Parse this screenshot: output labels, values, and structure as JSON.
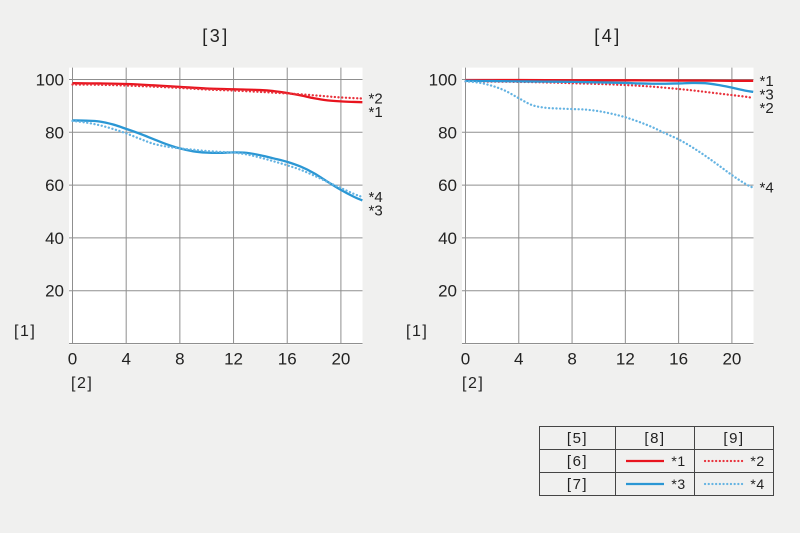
{
  "page": {
    "background": "#f0f0ef",
    "plot_background": "#ffffff",
    "grid_color": "#8f8f8f",
    "text_color": "#222222"
  },
  "chart_data": [
    {
      "type": "line",
      "title": "[3]",
      "ylabel": "[1]",
      "xlabel": "[2]",
      "x_ticks": [
        0,
        4,
        8,
        12,
        16,
        20
      ],
      "y_ticks": [
        20,
        40,
        60,
        80,
        100
      ],
      "xlim": [
        0,
        21.6
      ],
      "ylim": [
        0,
        104.5
      ],
      "grid": true,
      "legend_position": "none",
      "series": [
        {
          "name": "*1",
          "style": "solid",
          "color": "#e8141e",
          "points": [
            [
              0,
              98.6
            ],
            [
              2,
              98.5
            ],
            [
              4,
              98.3
            ],
            [
              6,
              97.8
            ],
            [
              8,
              97.2
            ],
            [
              10,
              96.6
            ],
            [
              12,
              96.3
            ],
            [
              14,
              96.0
            ],
            [
              15,
              95.6
            ],
            [
              16,
              94.9
            ],
            [
              17,
              94.0
            ],
            [
              18,
              92.9
            ],
            [
              19,
              92.1
            ],
            [
              20,
              91.7
            ],
            [
              21,
              91.5
            ],
            [
              21.6,
              91.4
            ]
          ]
        },
        {
          "name": "*2",
          "style": "dotted",
          "color": "#e8323c",
          "points": [
            [
              0,
              98.1
            ],
            [
              2,
              98.0
            ],
            [
              4,
              97.7
            ],
            [
              6,
              97.3
            ],
            [
              8,
              96.8
            ],
            [
              10,
              96.2
            ],
            [
              12,
              95.8
            ],
            [
              14,
              95.3
            ],
            [
              16,
              94.7
            ],
            [
              17,
              94.4
            ],
            [
              18,
              94.0
            ],
            [
              19,
              93.6
            ],
            [
              20,
              93.2
            ],
            [
              21.6,
              92.8
            ]
          ]
        },
        {
          "name": "*3",
          "style": "solid",
          "color": "#2b97d4",
          "points": [
            [
              0,
              84.5
            ],
            [
              1,
              84.4
            ],
            [
              2,
              84.1
            ],
            [
              3,
              83.0
            ],
            [
              4,
              81.3
            ],
            [
              5,
              79.5
            ],
            [
              6,
              77.5
            ],
            [
              7,
              75.5
            ],
            [
              8,
              73.9
            ],
            [
              9,
              72.8
            ],
            [
              10,
              72.3
            ],
            [
              11,
              72.2
            ],
            [
              12,
              72.4
            ],
            [
              13,
              72.2
            ],
            [
              14,
              71.3
            ],
            [
              15,
              70.1
            ],
            [
              16,
              68.8
            ],
            [
              17,
              67.0
            ],
            [
              18,
              64.5
            ],
            [
              19,
              61.3
            ],
            [
              20,
              58.2
            ],
            [
              21,
              55.5
            ],
            [
              21.6,
              54.2
            ]
          ]
        },
        {
          "name": "*4",
          "style": "dotted",
          "color": "#64b3e2",
          "points": [
            [
              0,
              84.3
            ],
            [
              1,
              83.7
            ],
            [
              2,
              82.7
            ],
            [
              3,
              81.3
            ],
            [
              4,
              79.6
            ],
            [
              5,
              77.6
            ],
            [
              6,
              75.7
            ],
            [
              7,
              74.6
            ],
            [
              8,
              73.9
            ],
            [
              9,
              73.4
            ],
            [
              10,
              72.9
            ],
            [
              11,
              72.6
            ],
            [
              12,
              72.3
            ],
            [
              13,
              71.6
            ],
            [
              14,
              70.4
            ],
            [
              15,
              69.0
            ],
            [
              16,
              67.5
            ],
            [
              17,
              65.8
            ],
            [
              18,
              63.6
            ],
            [
              19,
              61.2
            ],
            [
              20,
              58.9
            ],
            [
              21,
              56.6
            ],
            [
              21.6,
              55.5
            ]
          ]
        }
      ]
    },
    {
      "type": "line",
      "title": "[4]",
      "ylabel": "[1]",
      "xlabel": "[2]",
      "x_ticks": [
        0,
        4,
        8,
        12,
        16,
        20
      ],
      "y_ticks": [
        20,
        40,
        60,
        80,
        100
      ],
      "xlim": [
        0,
        21.6
      ],
      "ylim": [
        0,
        104.5
      ],
      "grid": true,
      "legend_position": "none",
      "series": [
        {
          "name": "*1",
          "style": "solid",
          "color": "#e8141e",
          "points": [
            [
              0,
              99.8
            ],
            [
              4,
              99.8
            ],
            [
              8,
              99.7
            ],
            [
              12,
              99.7
            ],
            [
              16,
              99.6
            ],
            [
              18,
              99.6
            ],
            [
              20,
              99.5
            ],
            [
              21.6,
              99.5
            ]
          ]
        },
        {
          "name": "*2",
          "style": "dotted",
          "color": "#e8323c",
          "points": [
            [
              0,
              99.3
            ],
            [
              2,
              99.2
            ],
            [
              4,
              99.1
            ],
            [
              6,
              98.9
            ],
            [
              8,
              98.6
            ],
            [
              10,
              98.3
            ],
            [
              12,
              97.9
            ],
            [
              14,
              97.3
            ],
            [
              16,
              96.4
            ],
            [
              17,
              95.9
            ],
            [
              18,
              95.3
            ],
            [
              19,
              94.7
            ],
            [
              20,
              94.1
            ],
            [
              21,
              93.5
            ],
            [
              21.6,
              93.0
            ]
          ]
        },
        {
          "name": "*3",
          "style": "solid",
          "color": "#2b97d4",
          "points": [
            [
              0,
              99.5
            ],
            [
              2,
              99.4
            ],
            [
              4,
              99.3
            ],
            [
              6,
              99.2
            ],
            [
              8,
              99.1
            ],
            [
              10,
              98.9
            ],
            [
              12,
              98.7
            ],
            [
              13,
              98.5
            ],
            [
              14,
              98.4
            ],
            [
              15,
              98.4
            ],
            [
              16,
              98.5
            ],
            [
              17,
              98.7
            ],
            [
              18,
              98.6
            ],
            [
              19,
              97.9
            ],
            [
              20,
              96.9
            ],
            [
              21,
              95.8
            ],
            [
              21.6,
              95.3
            ]
          ]
        },
        {
          "name": "*4",
          "style": "dotted",
          "color": "#64b3e2",
          "points": [
            [
              0,
              99.3
            ],
            [
              1,
              98.8
            ],
            [
              2,
              97.6
            ],
            [
              3,
              95.7
            ],
            [
              4,
              92.9
            ],
            [
              5,
              90.3
            ],
            [
              6,
              89.3
            ],
            [
              7,
              89.0
            ],
            [
              8,
              88.8
            ],
            [
              9,
              88.6
            ],
            [
              10,
              88.0
            ],
            [
              11,
              87.0
            ],
            [
              12,
              85.7
            ],
            [
              13,
              84.0
            ],
            [
              14,
              82.0
            ],
            [
              15,
              79.6
            ],
            [
              16,
              77.3
            ],
            [
              17,
              74.4
            ],
            [
              18,
              71.1
            ],
            [
              19,
              67.5
            ],
            [
              20,
              63.8
            ],
            [
              21,
              60.5
            ],
            [
              21.6,
              59.0
            ]
          ]
        }
      ]
    }
  ],
  "legend_table": {
    "header": [
      "[5]",
      "[8]",
      "[9]"
    ],
    "rows": [
      {
        "label": "[6]",
        "samples": [
          {
            "ref": "*1",
            "style": "solid",
            "color": "#e8141e"
          },
          {
            "ref": "*2",
            "style": "dotted",
            "color": "#e8323c"
          }
        ]
      },
      {
        "label": "[7]",
        "samples": [
          {
            "ref": "*3",
            "style": "solid",
            "color": "#2b97d4"
          },
          {
            "ref": "*4",
            "style": "dotted",
            "color": "#64b3e2"
          }
        ]
      }
    ]
  }
}
